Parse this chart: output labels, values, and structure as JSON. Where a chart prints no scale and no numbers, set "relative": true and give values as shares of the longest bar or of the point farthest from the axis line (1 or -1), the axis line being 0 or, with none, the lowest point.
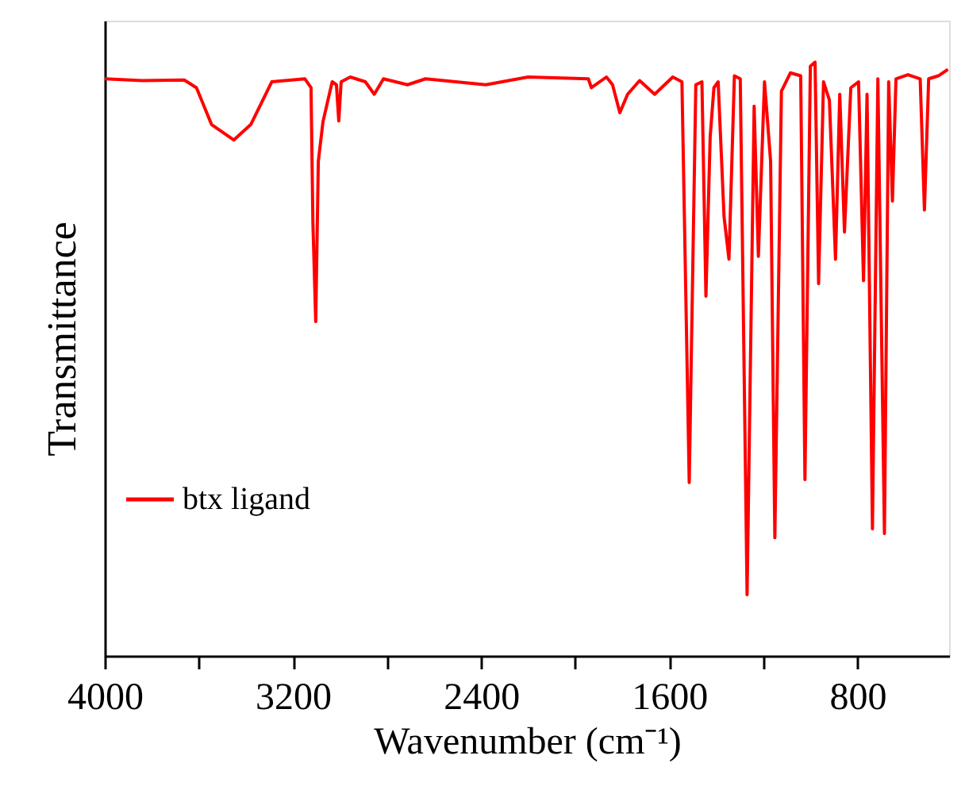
{
  "chart_data": {
    "type": "line",
    "relative": true,
    "xlabel": "Wavenumber (cm⁻¹)",
    "ylabel": "Transmittance",
    "xlim": [
      4000,
      410
    ],
    "xticks": [
      4000,
      {
        "value": 3600,
        "label": null
      },
      3200,
      {
        "value": 2800,
        "label": null
      },
      2400,
      {
        "value": 2000,
        "label": null
      },
      1600,
      {
        "value": 1200,
        "label": null
      },
      800
    ],
    "legend": "bottom left",
    "grid": false,
    "marker": "none",
    "line_style": "solid",
    "series": [
      {
        "name": "btx ligand",
        "color": "#ff0000",
        "x": [
          4000,
          3841,
          3662,
          3610,
          3546,
          3451,
          3379,
          3290,
          3149,
          3123,
          3115,
          3103,
          3092,
          3072,
          3033,
          3015,
          3005,
          2995,
          2956,
          2892,
          2854,
          2815,
          2713,
          2636,
          2508,
          2380,
          2200,
          1944,
          1931,
          1867,
          1841,
          1810,
          1777,
          1726,
          1662,
          1585,
          1546,
          1515,
          1487,
          1461,
          1444,
          1426,
          1410,
          1392,
          1367,
          1346,
          1323,
          1298,
          1269,
          1239,
          1221,
          1195,
          1169,
          1151,
          1123,
          1085,
          1041,
          1023,
          1000,
          980,
          965,
          944,
          919,
          893,
          875,
          855,
          828,
          795,
          774,
          759,
          736,
          713,
          685,
          667,
          651,
          636,
          585,
          533,
          515,
          497,
          456,
          415
        ],
        "values": [
          0.972,
          0.969,
          0.97,
          0.957,
          0.895,
          0.869,
          0.895,
          0.967,
          0.972,
          0.957,
          0.73,
          0.563,
          0.833,
          0.9,
          0.967,
          0.962,
          0.901,
          0.967,
          0.975,
          0.967,
          0.946,
          0.972,
          0.962,
          0.972,
          0.967,
          0.962,
          0.975,
          0.972,
          0.957,
          0.975,
          0.962,
          0.915,
          0.946,
          0.969,
          0.946,
          0.975,
          0.967,
          0.292,
          0.962,
          0.967,
          0.606,
          0.874,
          0.957,
          0.967,
          0.74,
          0.668,
          0.977,
          0.972,
          0.103,
          0.926,
          0.673,
          0.967,
          0.833,
          0.199,
          0.951,
          0.982,
          0.977,
          0.297,
          0.993,
          1.0,
          0.627,
          0.967,
          0.936,
          0.668,
          0.946,
          0.714,
          0.957,
          0.967,
          0.632,
          0.946,
          0.214,
          0.972,
          0.206,
          0.967,
          0.766,
          0.972,
          0.979,
          0.972,
          0.751,
          0.972,
          0.977,
          0.988
        ]
      }
    ]
  }
}
